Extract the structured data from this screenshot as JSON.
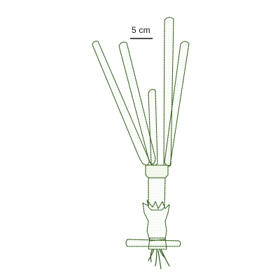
{
  "scale_bar": {
    "label": "5 cm"
  },
  "illustration": {
    "subject": "plant-shoot-with-rhizome",
    "colors": {
      "line": "#2f5a17",
      "fill": "#f7faf1",
      "stipple": "#6f9a45",
      "scale": "#111111"
    }
  }
}
